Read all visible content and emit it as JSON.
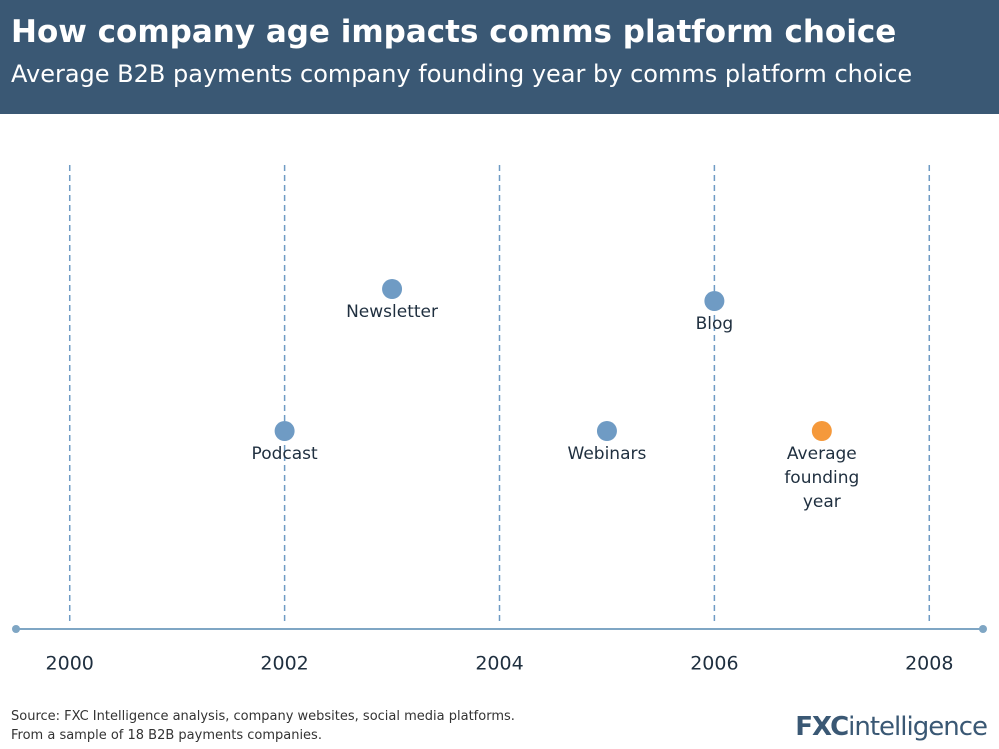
{
  "chart_data": {
    "type": "dot",
    "title": "How company age impacts comms platform choice",
    "subtitle": "Average B2B payments company founding year by comms platform choice",
    "categories": [
      "Podcast",
      "Newsletter",
      "Webinars",
      "Blog",
      "Average founding year"
    ],
    "x": [
      2002,
      2003,
      2005,
      2006,
      2007
    ],
    "colors": [
      "#6f9bc4",
      "#6f9bc4",
      "#6f9bc4",
      "#6f9bc4",
      "#f5993b"
    ],
    "xlim": [
      1999.5,
      2008.5
    ],
    "xticks": [
      2000,
      2002,
      2004,
      2006,
      2008
    ],
    "grid": true,
    "source": [
      "Source: FXC Intelligence analysis, company websites, social media platforms.",
      "From a sample of 18 B2B payments companies."
    ],
    "logo": {
      "bold": "FXC",
      "rest": "intelligence"
    }
  }
}
